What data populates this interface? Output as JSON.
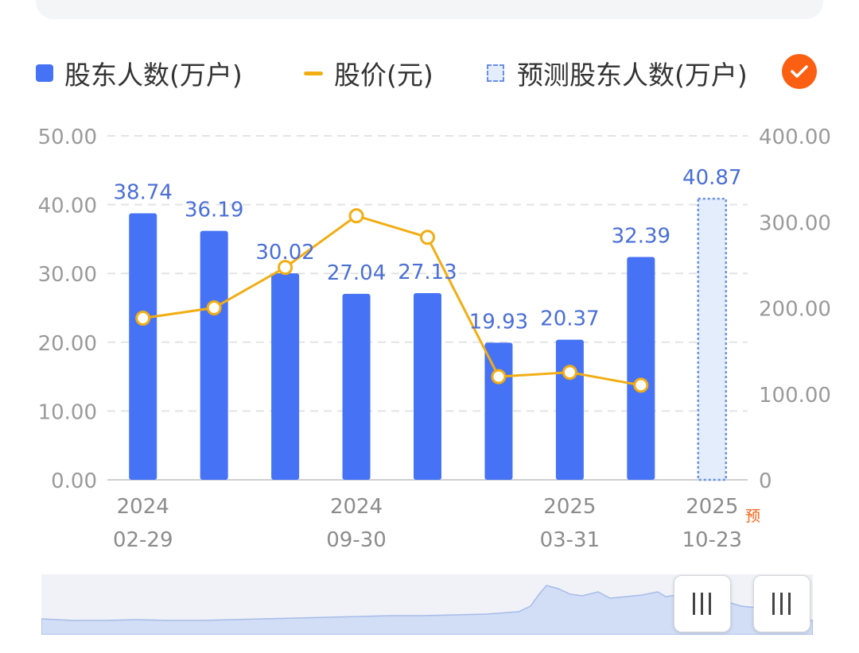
{
  "legend": {
    "holders_label": "股东人数(万户)",
    "price_label": "股价(元)",
    "forecast_label": "预测股东人数(万户)"
  },
  "forecast_badge": "预",
  "colors": {
    "bar": "#4673f5",
    "line": "#f2ad13",
    "forecast_fill": "#e3edfb",
    "forecast_border": "#6a8fe8",
    "label": "#4a6fd6",
    "badge": "#fb6012"
  },
  "chart_data": {
    "type": "bar",
    "categories": [
      "2024-02-29",
      "",
      "",
      "2024-09-30",
      "",
      "",
      "2025-03-31",
      "",
      "2025-10-23"
    ],
    "x_tick_labels": [
      {
        "index": 0,
        "year": "2024",
        "date": "02-29"
      },
      {
        "index": 3,
        "year": "2024",
        "date": "09-30"
      },
      {
        "index": 6,
        "year": "2025",
        "date": "03-31"
      },
      {
        "index": 8,
        "year": "2025",
        "date": "10-23"
      }
    ],
    "series": [
      {
        "name": "股东人数(万户)",
        "type": "bar",
        "axis": "left",
        "values": [
          38.74,
          36.19,
          30.02,
          27.04,
          27.13,
          19.93,
          20.37,
          32.39,
          null
        ],
        "labels": [
          "38.74",
          "36.19",
          "30.02",
          "27.04",
          "27.13",
          "19.93",
          "20.37",
          "32.39",
          ""
        ]
      },
      {
        "name": "预测股东人数(万户)",
        "type": "bar",
        "axis": "left",
        "values": [
          null,
          null,
          null,
          null,
          null,
          null,
          null,
          null,
          40.87
        ],
        "labels": [
          "",
          "",
          "",
          "",
          "",
          "",
          "",
          "",
          "40.87"
        ]
      },
      {
        "name": "股价(元)",
        "type": "line",
        "axis": "right",
        "values": [
          188,
          200,
          247,
          307,
          282,
          120,
          125,
          110,
          null
        ]
      }
    ],
    "y_left": {
      "min": 0,
      "max": 50,
      "ticks": [
        "0.00",
        "10.00",
        "20.00",
        "30.00",
        "40.00",
        "50.00"
      ]
    },
    "y_right": {
      "min": 0,
      "max": 400,
      "ticks": [
        "0",
        "100.00",
        "200.00",
        "300.00",
        "400.00"
      ]
    },
    "grid": true,
    "legend_position": "top"
  }
}
